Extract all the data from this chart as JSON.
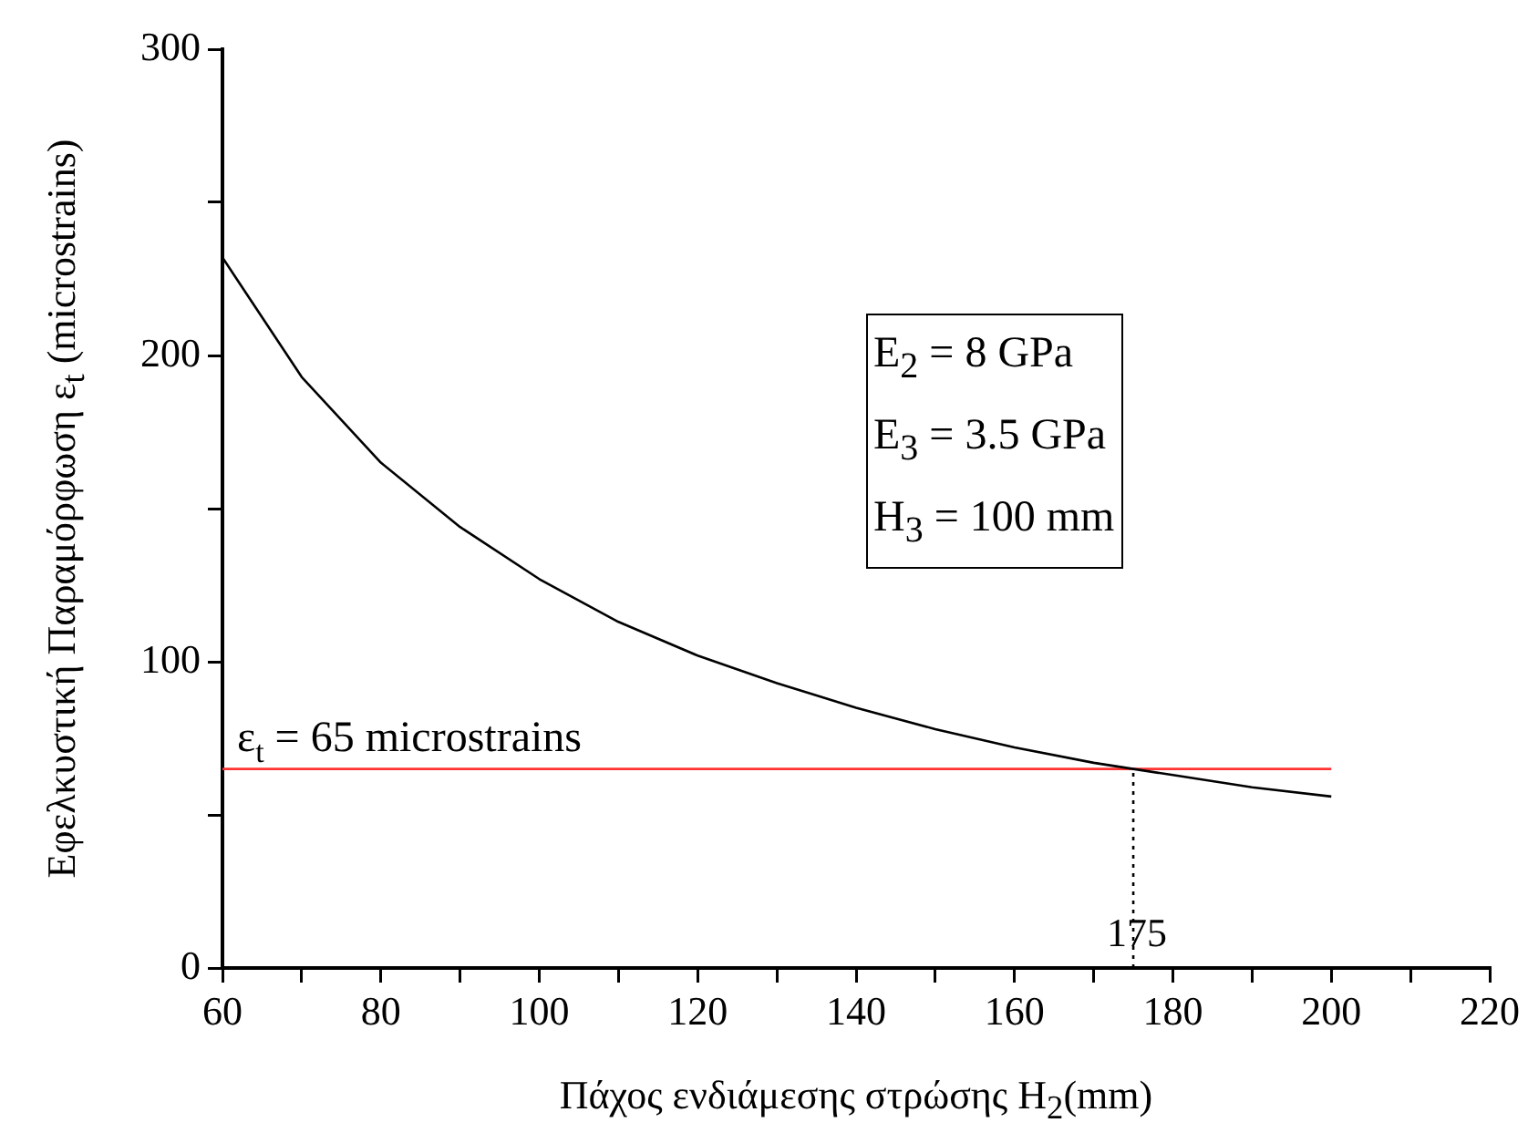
{
  "chart_data": {
    "type": "line",
    "xlabel": "Πάχος ενδιάμεσης στρώσης H$_{2}$(mm)",
    "ylabel": "Εφελκυστική Παραμόρφωση ε$_{t}$ (microstrains)",
    "xlim": [
      60,
      220
    ],
    "xticks": [
      60,
      {
        "value": 70,
        "label": null
      },
      80,
      {
        "value": 90,
        "label": null
      },
      100,
      {
        "value": 110,
        "label": null
      },
      120,
      {
        "value": 130,
        "label": null
      },
      140,
      {
        "value": 150,
        "label": null
      },
      160,
      {
        "value": 170,
        "label": null
      },
      180,
      {
        "value": 190,
        "label": null
      },
      200,
      {
        "value": 210,
        "label": null
      },
      220
    ],
    "ylim": [
      0,
      300
    ],
    "yticks": [
      0,
      {
        "value": 50,
        "label": null
      },
      100,
      {
        "value": 150,
        "label": null
      },
      200,
      {
        "value": 250,
        "label": null
      },
      300
    ],
    "grid": false,
    "legend": false,
    "marker": "none",
    "series": [
      {
        "color": "#000000",
        "x": [
          60,
          70,
          80,
          90,
          100,
          110,
          120,
          130,
          140,
          150,
          160,
          170,
          175,
          180,
          190,
          200
        ],
        "values": [
          232,
          193,
          165,
          144,
          127,
          113,
          102,
          93,
          85,
          78,
          72,
          67,
          65,
          63,
          59,
          56
        ]
      },
      {
        "color": "#ff3333",
        "x": [
          60,
          200
        ],
        "values": [
          65,
          65
        ]
      },
      {
        "color": "#000000",
        "x": [
          175,
          175
        ],
        "values": [
          0,
          65
        ],
        "line_style": "dotted"
      }
    ],
    "annotations": [
      {
        "text": "ε$_{t}$ = 65 microstrains",
        "x": 60,
        "y": 65
      },
      {
        "text": "175",
        "x": 175,
        "y": 0
      },
      "E$_{2}$ = 8 GPa",
      "E$_{3}$ = 3.5 GPa",
      "H$_{3}$ = 100 mm"
    ]
  }
}
